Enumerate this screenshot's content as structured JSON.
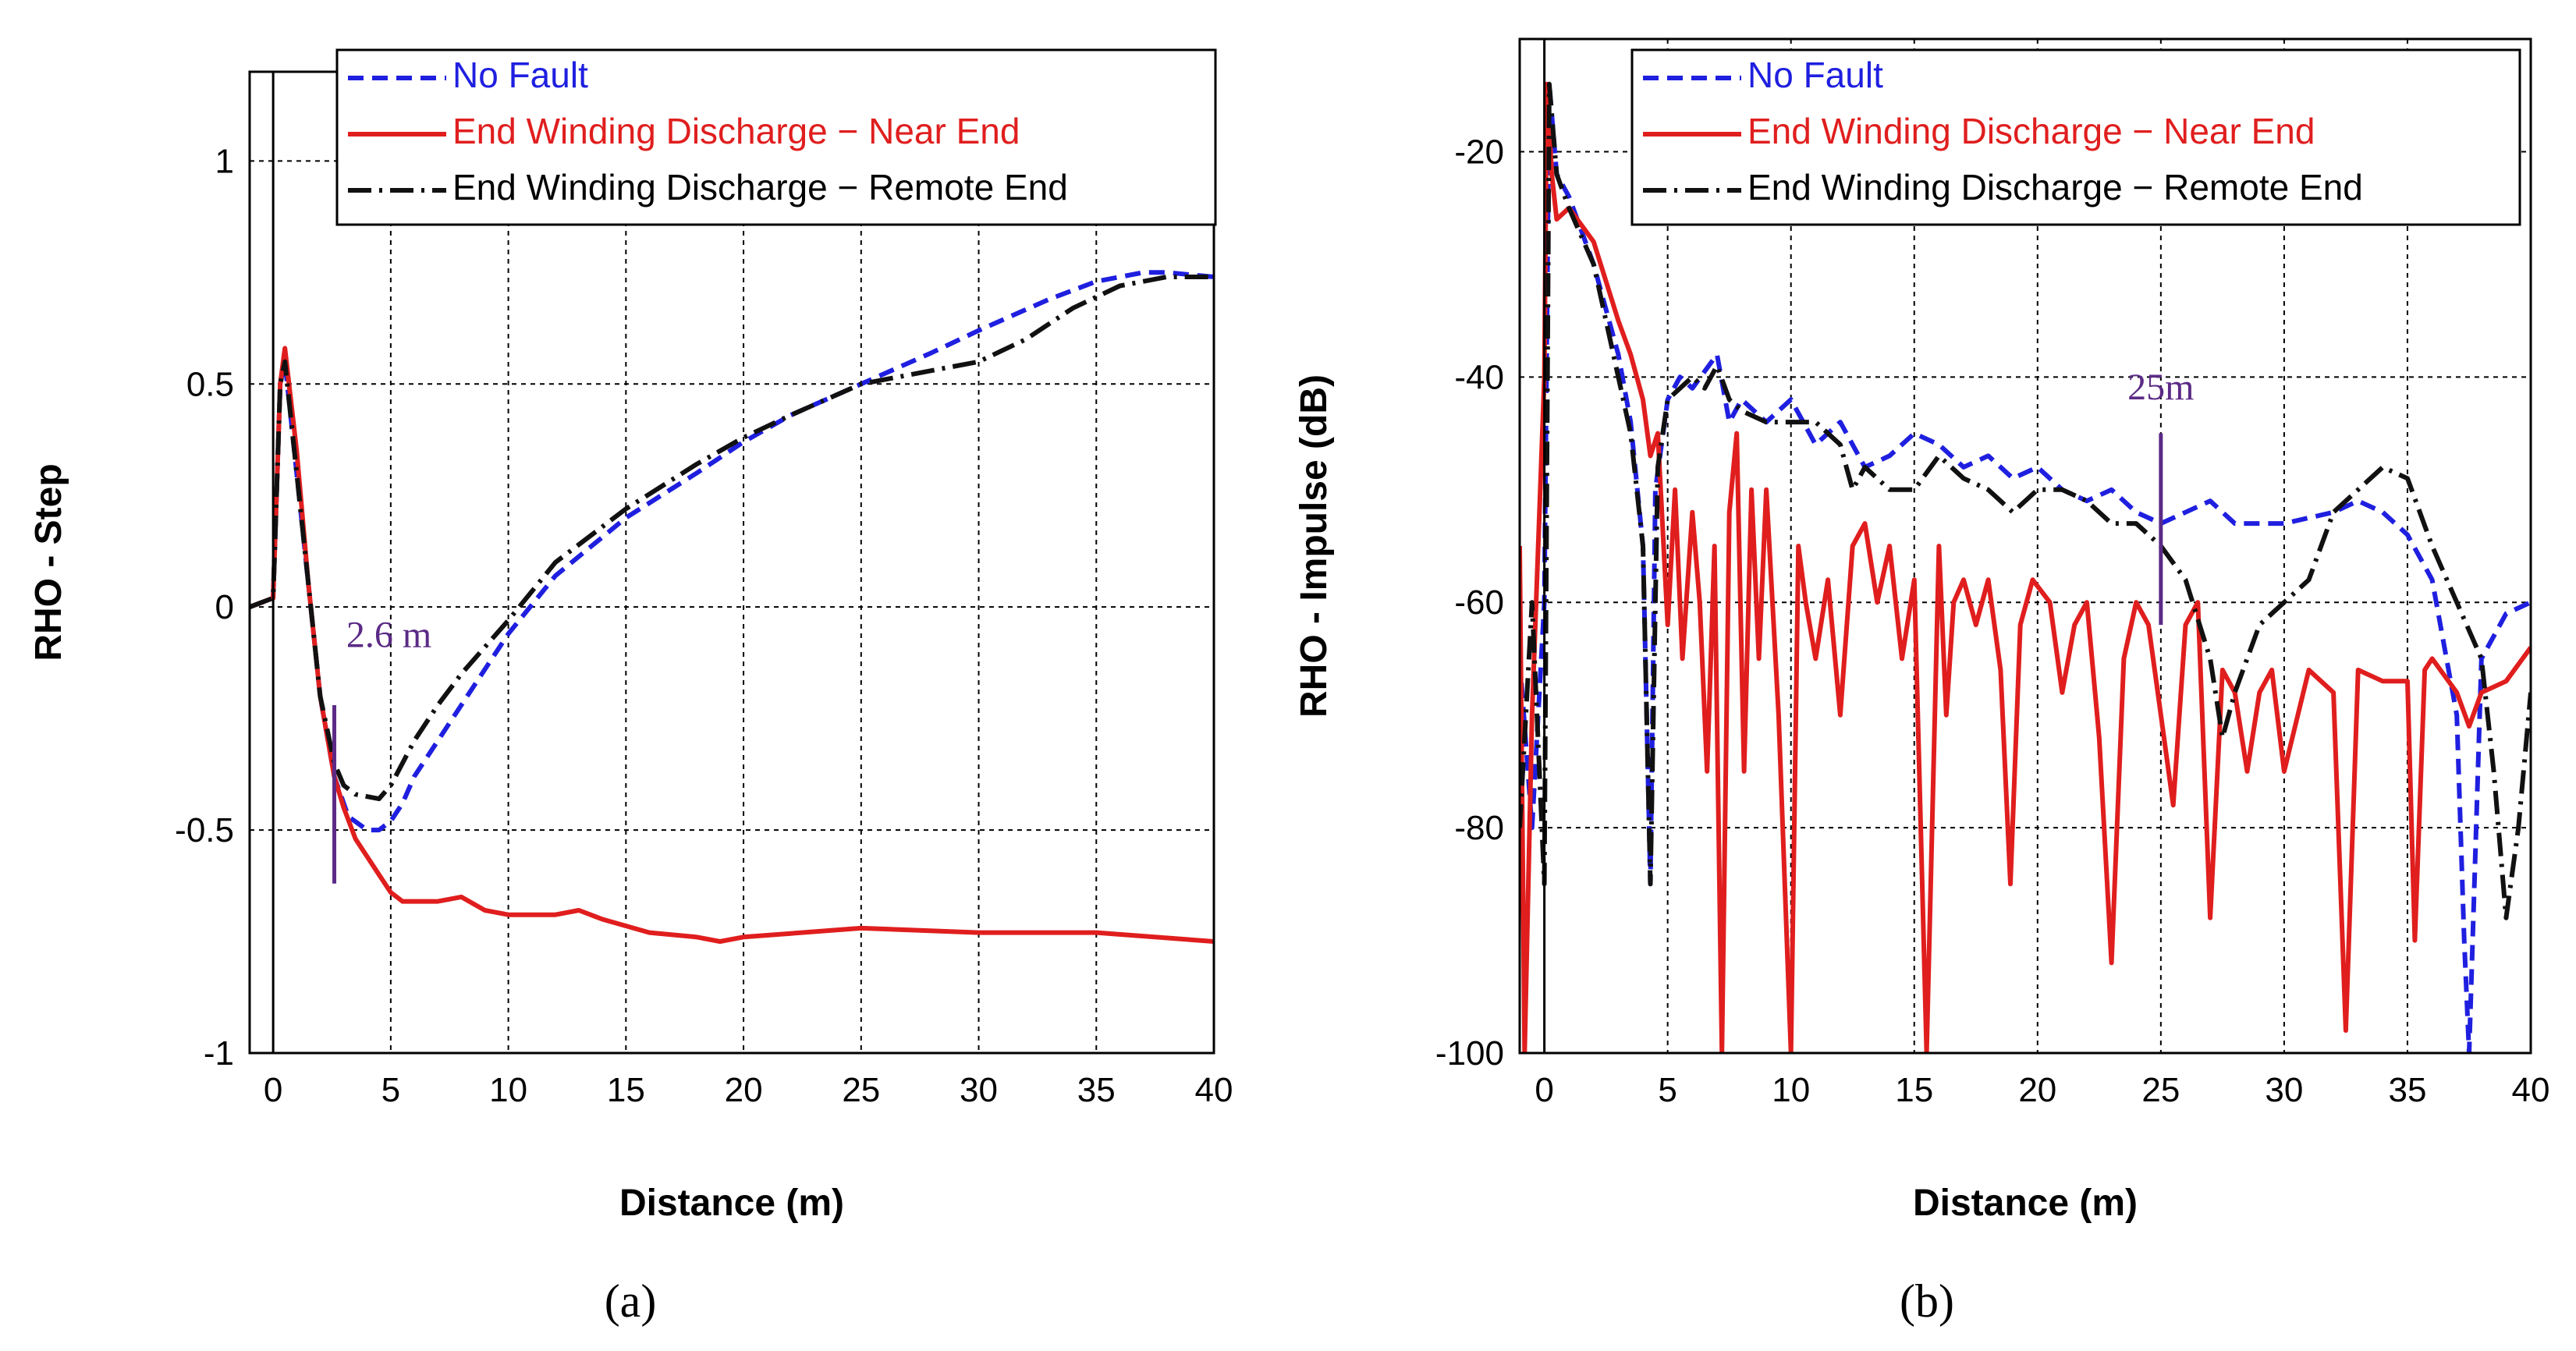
{
  "figure": {
    "panels": [
      {
        "panel_label": "(a)"
      },
      {
        "panel_label": "(b)"
      }
    ]
  },
  "chart_data": [
    {
      "type": "line",
      "title": "",
      "xlabel": "Distance (m)",
      "ylabel": "RHO - Step",
      "xlim": [
        -1,
        40
      ],
      "ylim": [
        -1,
        1.2
      ],
      "xticks": [
        0,
        5,
        10,
        15,
        20,
        25,
        30,
        35,
        40
      ],
      "xtick_labels": [
        "0",
        "5",
        "10",
        "15",
        "20",
        "25",
        "30",
        "35",
        "40"
      ],
      "yticks": [
        -1,
        -0.5,
        0,
        0.5,
        1
      ],
      "ytick_labels": [
        "-1",
        "-0.5",
        "0",
        "0.5",
        "1"
      ],
      "grid": true,
      "legend_position": "top-right",
      "series": [
        {
          "name": "No Fault",
          "color": "#1f1fe0",
          "dash": "dashed",
          "x": [
            -1,
            0,
            0.3,
            0.5,
            1,
            1.5,
            2,
            2.6,
            3.2,
            4,
            4.5,
            5,
            5.5,
            6,
            7,
            8,
            10,
            12,
            15,
            18,
            20,
            22,
            25,
            28,
            30,
            33,
            35,
            37,
            38,
            40
          ],
          "y": [
            0,
            0.02,
            0.5,
            0.55,
            0.3,
            0.05,
            -0.2,
            -0.38,
            -0.47,
            -0.5,
            -0.5,
            -0.48,
            -0.44,
            -0.38,
            -0.3,
            -0.22,
            -0.06,
            0.07,
            0.2,
            0.3,
            0.37,
            0.43,
            0.5,
            0.57,
            0.62,
            0.69,
            0.73,
            0.75,
            0.75,
            0.74
          ]
        },
        {
          "name": "End Winding Discharge − Near End",
          "color": "#e01e1e",
          "dash": "solid",
          "x": [
            -1,
            0,
            0.3,
            0.5,
            1,
            1.5,
            2,
            2.6,
            3,
            3.5,
            4,
            4.5,
            5,
            5.5,
            6,
            7,
            8,
            9,
            10,
            12,
            13,
            14,
            16,
            18,
            19,
            20,
            25,
            30,
            35,
            40
          ],
          "y": [
            0,
            0.02,
            0.5,
            0.58,
            0.35,
            0.05,
            -0.2,
            -0.38,
            -0.45,
            -0.52,
            -0.56,
            -0.6,
            -0.64,
            -0.66,
            -0.66,
            -0.66,
            -0.65,
            -0.68,
            -0.69,
            -0.69,
            -0.68,
            -0.7,
            -0.73,
            -0.74,
            -0.75,
            -0.74,
            -0.72,
            -0.73,
            -0.73,
            -0.75
          ]
        },
        {
          "name": "End Winding Discharge − Remote End",
          "color": "#111111",
          "dash": "dashdot",
          "x": [
            -1,
            0,
            0.3,
            0.5,
            1,
            1.5,
            2,
            2.6,
            3,
            3.5,
            4.5,
            5,
            5.5,
            6,
            7,
            8,
            10,
            12,
            15,
            18,
            20,
            22,
            25,
            27,
            30,
            32,
            34,
            36,
            38,
            40
          ],
          "y": [
            0,
            0.02,
            0.5,
            0.55,
            0.3,
            0.05,
            -0.2,
            -0.35,
            -0.4,
            -0.42,
            -0.43,
            -0.4,
            -0.35,
            -0.3,
            -0.22,
            -0.15,
            -0.03,
            0.1,
            0.22,
            0.32,
            0.38,
            0.43,
            0.5,
            0.52,
            0.55,
            0.6,
            0.67,
            0.72,
            0.74,
            0.74
          ]
        }
      ],
      "annotations": [
        {
          "text": "2.6 m",
          "x": 2.6,
          "y_range": [
            -0.62,
            -0.22
          ],
          "label_y": -0.09,
          "color": "#5b2a86"
        }
      ]
    },
    {
      "type": "line",
      "title": "",
      "xlabel": "Distance (m)",
      "ylabel": "RHO - Impulse (dB)",
      "xlim": [
        -1,
        40
      ],
      "ylim": [
        -100,
        -10
      ],
      "xticks": [
        0,
        5,
        10,
        15,
        20,
        25,
        30,
        35,
        40
      ],
      "xtick_labels": [
        "0",
        "5",
        "10",
        "15",
        "20",
        "25",
        "30",
        "35",
        "40"
      ],
      "yticks": [
        -100,
        -80,
        -60,
        -40,
        -20
      ],
      "ytick_labels": [
        "-100",
        "-80",
        "-60",
        "-40",
        "-20"
      ],
      "grid": true,
      "legend_position": "top-right",
      "series": [
        {
          "name": "No Fault",
          "color": "#1f1fe0",
          "dash": "dashed",
          "x": [
            -1,
            -0.5,
            0,
            0.2,
            0.5,
            1,
            2,
            3,
            3.5,
            4,
            4.3,
            4.5,
            5,
            5.5,
            6,
            7,
            7.5,
            8,
            9,
            10,
            11,
            12,
            13,
            14,
            15,
            16,
            17,
            18,
            19,
            20,
            21,
            22,
            23,
            24,
            25,
            26,
            27,
            28,
            30,
            32,
            33,
            34,
            35,
            36,
            37,
            37.3,
            37.5,
            38,
            39,
            40
          ],
          "y": [
            -65,
            -80,
            -60,
            -14,
            -22,
            -24,
            -30,
            -38,
            -44,
            -55,
            -85,
            -50,
            -42,
            -40,
            -41,
            -38,
            -44,
            -42,
            -44,
            -42,
            -46,
            -44,
            -48,
            -47,
            -45,
            -46,
            -48,
            -47,
            -49,
            -48,
            -50,
            -51,
            -50,
            -52,
            -53,
            -52,
            -51,
            -53,
            -53,
            -52,
            -51,
            -52,
            -54,
            -58,
            -70,
            -90,
            -100,
            -65,
            -61,
            -60
          ]
        },
        {
          "name": "End Winding Discharge − Near End",
          "color": "#e01e1e",
          "dash": "solid",
          "x": [
            -1,
            -0.8,
            -0.5,
            0,
            0.1,
            0.3,
            0.5,
            1,
            2,
            3,
            3.5,
            4,
            4.3,
            4.6,
            5,
            5.3,
            5.6,
            6,
            6.3,
            6.6,
            6.9,
            7.2,
            7.5,
            7.8,
            8.1,
            8.4,
            8.7,
            9,
            9.5,
            10,
            10.3,
            10.6,
            11,
            11.5,
            12,
            12.5,
            13,
            13.5,
            14,
            14.5,
            15,
            15.5,
            16,
            16.3,
            16.6,
            17,
            17.5,
            18,
            18.5,
            18.9,
            19.3,
            19.8,
            20.5,
            21,
            21.5,
            22,
            22.5,
            23,
            23.5,
            24,
            24.5,
            25,
            25.5,
            26,
            26.5,
            27,
            27.5,
            28,
            28.5,
            29,
            29.5,
            30,
            31,
            32,
            32.5,
            33,
            34,
            35,
            35.3,
            35.7,
            36,
            37,
            37.5,
            38,
            39,
            40
          ],
          "y": [
            -55,
            -100,
            -70,
            -40,
            -14,
            -22,
            -26,
            -25,
            -28,
            -35,
            -38,
            -42,
            -47,
            -45,
            -62,
            -50,
            -65,
            -52,
            -60,
            -75,
            -55,
            -100,
            -52,
            -45,
            -75,
            -50,
            -65,
            -50,
            -70,
            -100,
            -55,
            -60,
            -65,
            -58,
            -70,
            -55,
            -53,
            -60,
            -55,
            -65,
            -58,
            -100,
            -55,
            -70,
            -60,
            -58,
            -62,
            -58,
            -66,
            -85,
            -62,
            -58,
            -60,
            -68,
            -62,
            -60,
            -72,
            -92,
            -65,
            -60,
            -62,
            -70,
            -78,
            -62,
            -60,
            -88,
            -66,
            -68,
            -75,
            -68,
            -66,
            -75,
            -66,
            -68,
            -98,
            -66,
            -67,
            -67,
            -90,
            -66,
            -65,
            -68,
            -71,
            -68,
            -67,
            -64
          ]
        },
        {
          "name": "End Winding Discharge − Remote End",
          "color": "#111111",
          "dash": "dashdot",
          "x": [
            -1,
            -0.5,
            0,
            0.2,
            0.5,
            1,
            2,
            3,
            3.5,
            4,
            4.3,
            4.6,
            5,
            5.5,
            6,
            6.5,
            7,
            7.5,
            8,
            9,
            10,
            11,
            12,
            12.5,
            13,
            14,
            15,
            16,
            17,
            18,
            19,
            20,
            21,
            22,
            23,
            24,
            25,
            26,
            27,
            27.5,
            28,
            28.5,
            29,
            30,
            31,
            32,
            33,
            34,
            35,
            36,
            37,
            38,
            38.5,
            39,
            39.5,
            40
          ],
          "y": [
            -80,
            -60,
            -85,
            -14,
            -22,
            -25,
            -30,
            -40,
            -45,
            -55,
            -85,
            -48,
            -42,
            -41,
            -40,
            -41,
            -39,
            -42,
            -43,
            -44,
            -44,
            -44,
            -46,
            -50,
            -48,
            -50,
            -50,
            -47,
            -49,
            -50,
            -52,
            -50,
            -50,
            -51,
            -53,
            -53,
            -55,
            -58,
            -65,
            -72,
            -68,
            -65,
            -62,
            -60,
            -58,
            -52,
            -50,
            -48,
            -49,
            -55,
            -60,
            -65,
            -75,
            -88,
            -80,
            -68
          ]
        }
      ],
      "annotations": [
        {
          "text": "25m",
          "x": 25,
          "y_range": [
            -62,
            -45
          ],
          "label_y": -42,
          "color": "#5b2a86"
        }
      ]
    }
  ]
}
